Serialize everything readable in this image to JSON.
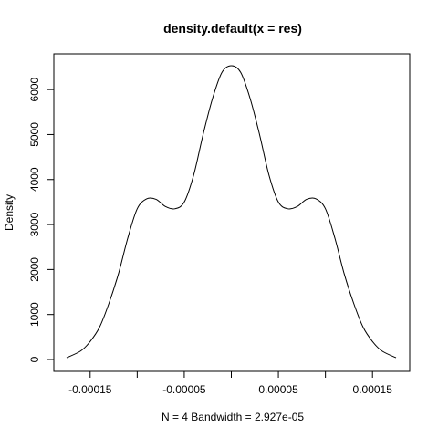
{
  "chart_data": {
    "type": "line",
    "title": "density.default(x = res)",
    "xlabel": "N = 4   Bandwidth = 2.927e-05",
    "ylabel": "Density",
    "xlim": [
      -0.000175,
      0.000175
    ],
    "ylim": [
      0,
      6500
    ],
    "x_ticks": [
      -0.00015,
      -0.0001,
      -5e-05,
      0,
      5e-05,
      0.0001,
      0.00015
    ],
    "x_tick_labels": [
      "-0.00015",
      "",
      "-0.00005",
      "",
      "0.00005",
      "",
      "0.00015"
    ],
    "y_ticks": [
      0,
      1000,
      2000,
      3000,
      4000,
      5000,
      6000
    ],
    "y_tick_labels": [
      "0",
      "1000",
      "2000",
      "3000",
      "4000",
      "5000",
      "6000"
    ],
    "grid": false,
    "series": [
      {
        "x": [
          -0.000175,
          -0.00016,
          -0.00015,
          -0.00014,
          -0.00013,
          -0.00012,
          -0.00011,
          -0.0001,
          -9e-05,
          -8e-05,
          -7e-05,
          -6e-05,
          -5e-05,
          -4e-05,
          -3e-05,
          -2e-05,
          -1e-05,
          0,
          1e-05,
          2e-05,
          3e-05,
          4e-05,
          5e-05,
          6e-05,
          7e-05,
          8e-05,
          9e-05,
          0.0001,
          0.00011,
          0.00012,
          0.00013,
          0.00014,
          0.00015,
          0.00016,
          0.000175
        ],
        "y": [
          40,
          190,
          400,
          720,
          1250,
          1900,
          2700,
          3350,
          3570,
          3560,
          3400,
          3350,
          3500,
          4100,
          5000,
          5800,
          6380,
          6530,
          6380,
          5800,
          5000,
          4100,
          3500,
          3350,
          3400,
          3560,
          3570,
          3350,
          2700,
          1900,
          1250,
          720,
          400,
          190,
          40
        ]
      }
    ]
  }
}
